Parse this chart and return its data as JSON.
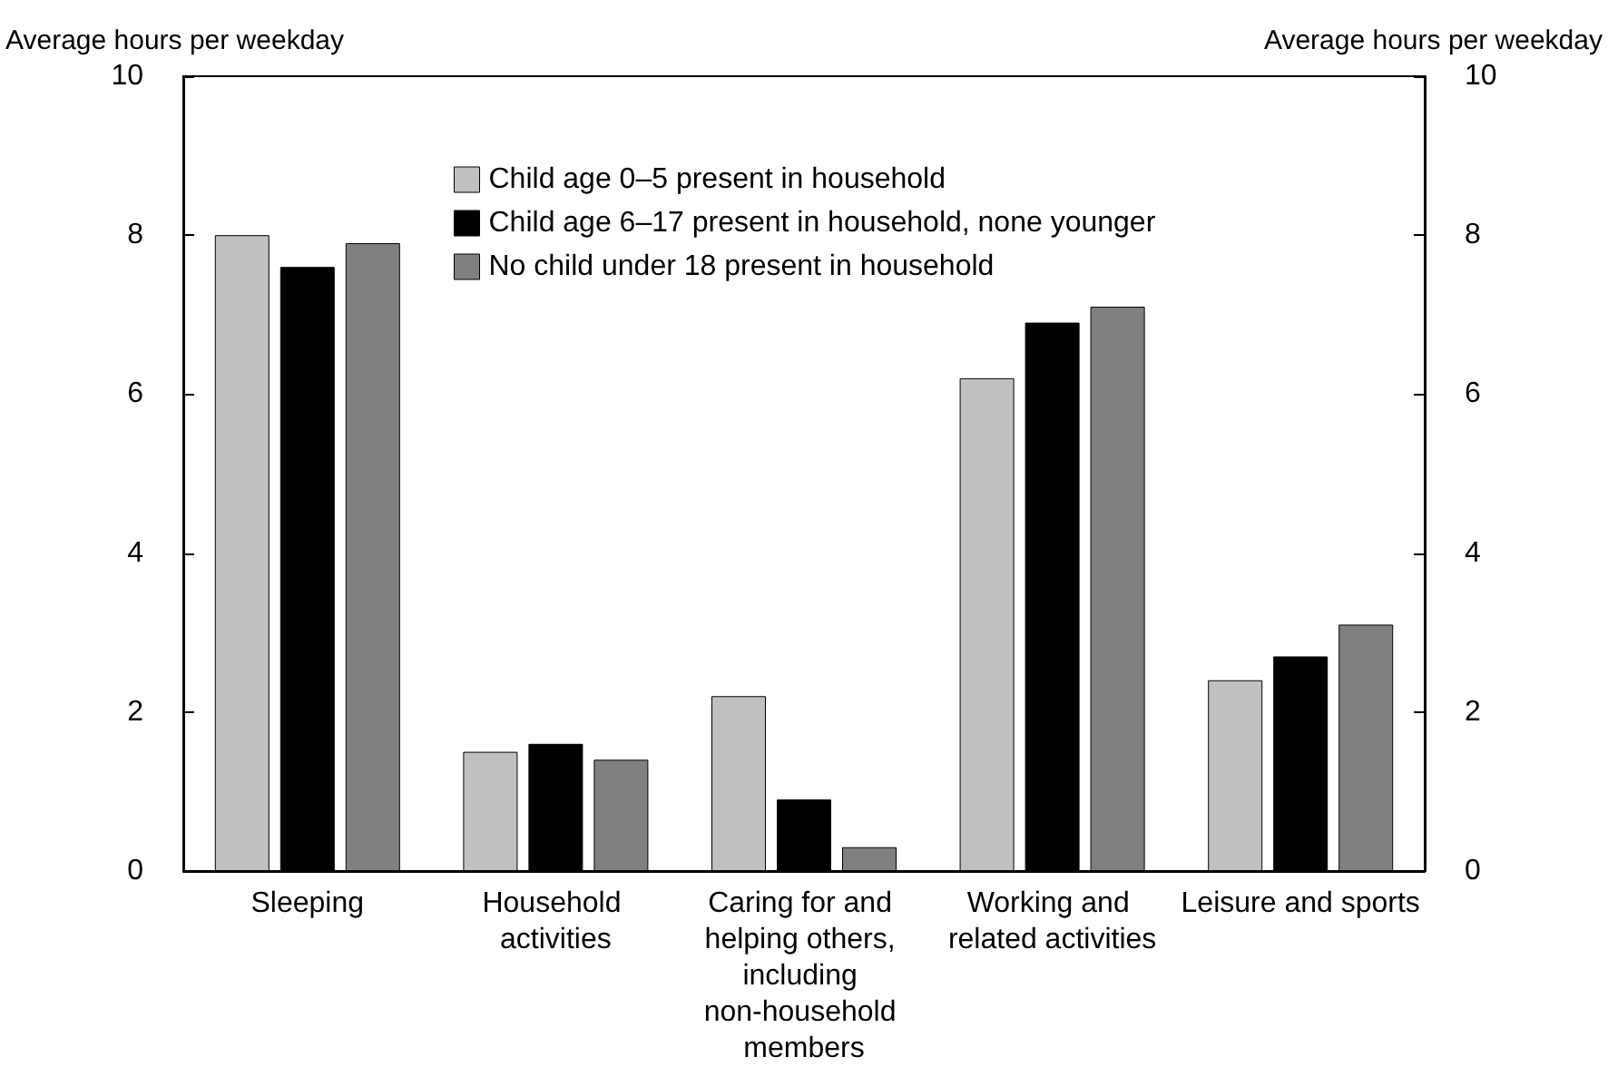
{
  "chart_data": {
    "type": "bar",
    "ylabel": "Average hours per weekday",
    "y2label": "Average hours per weekday",
    "categories": [
      "Sleeping",
      "Household activities",
      "Caring for and helping others, including non-household members",
      "Working and related activities",
      "Leisure and sports"
    ],
    "series": [
      {
        "name": "Child age 0–5 present in household",
        "color": "#c0c0c0",
        "values": [
          8.0,
          1.5,
          2.2,
          6.2,
          2.4
        ]
      },
      {
        "name": "Child age 6–17 present in household, none younger",
        "color": "#000000",
        "values": [
          7.6,
          1.6,
          0.9,
          6.9,
          2.7
        ]
      },
      {
        "name": "No child under 18 present in household",
        "color": "#808080",
        "values": [
          7.9,
          1.4,
          0.3,
          7.1,
          3.1
        ]
      }
    ],
    "ylim": [
      0,
      10
    ],
    "yticks": [
      0,
      2,
      4,
      6,
      8,
      10
    ],
    "y2lim": [
      0,
      10
    ],
    "y2ticks": [
      0,
      2,
      4,
      6,
      8,
      10
    ],
    "grid": false,
    "legend": "top"
  }
}
